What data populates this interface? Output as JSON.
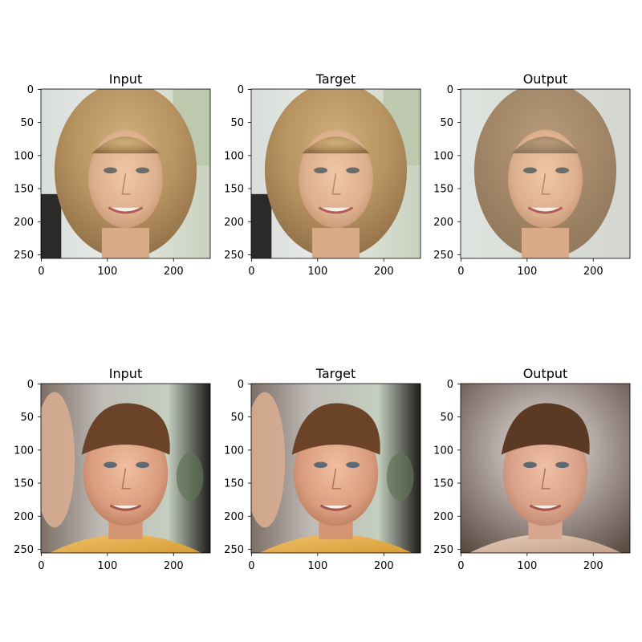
{
  "figure": {
    "rows": [
      {
        "name": "woman",
        "panels": [
          {
            "title": "Input",
            "image": "woman-input"
          },
          {
            "title": "Target",
            "image": "woman-target"
          },
          {
            "title": "Output",
            "image": "woman-output"
          }
        ]
      },
      {
        "name": "man",
        "panels": [
          {
            "title": "Input",
            "image": "man-input"
          },
          {
            "title": "Target",
            "image": "man-target"
          },
          {
            "title": "Output",
            "image": "man-output"
          }
        ]
      }
    ],
    "x_ticks": [
      "0",
      "100",
      "200"
    ],
    "y_ticks": [
      "0",
      "50",
      "100",
      "150",
      "200",
      "250"
    ]
  }
}
